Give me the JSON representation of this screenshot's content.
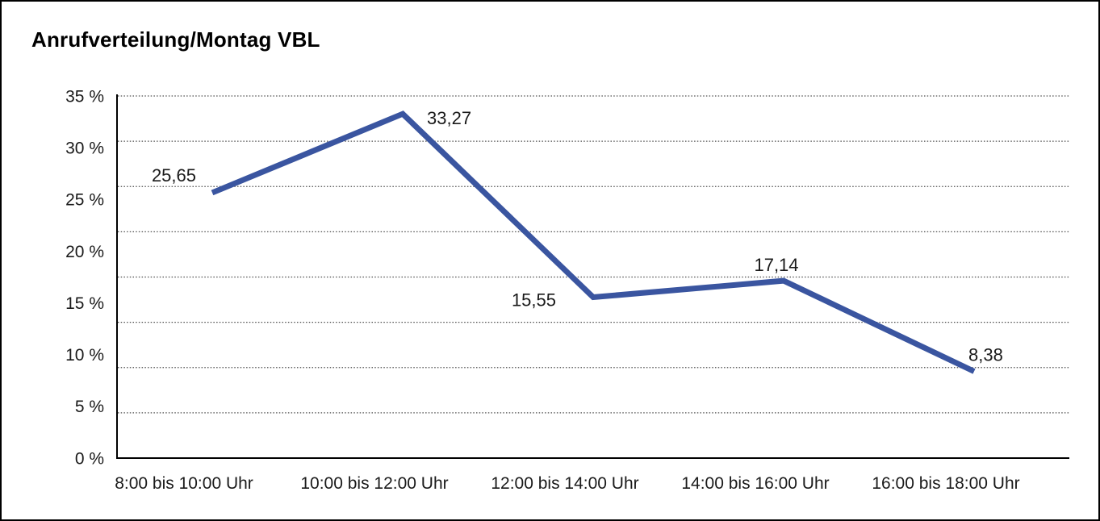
{
  "chart_data": {
    "type": "line",
    "title": "Anrufverteilung/Montag VBL",
    "categories": [
      "8:00 bis 10:00 Uhr",
      "10:00 bis 12:00 Uhr",
      "12:00 bis 14:00 Uhr",
      "14:00 bis 16:00 Uhr",
      "16:00 bis 18:00 Uhr"
    ],
    "values": [
      25.65,
      33.27,
      15.55,
      17.14,
      8.38
    ],
    "point_labels": [
      "25,65",
      "33,27",
      "15,55",
      "17,14",
      "8,38"
    ],
    "xlabel": "",
    "ylabel": "",
    "ylim": [
      0,
      35
    ],
    "y_tick_step": 5,
    "y_tick_labels": [
      "35 %",
      "30 %",
      "25 %",
      "20 %",
      "15 %",
      "10 %",
      "5 %",
      "0 %"
    ],
    "grid": "horizontal-dotted",
    "legend": "none",
    "line_color": "#3A55A0",
    "axis_color": "#000000",
    "grid_color": "#4d4d4d",
    "text_color": "#1a1a1a"
  }
}
